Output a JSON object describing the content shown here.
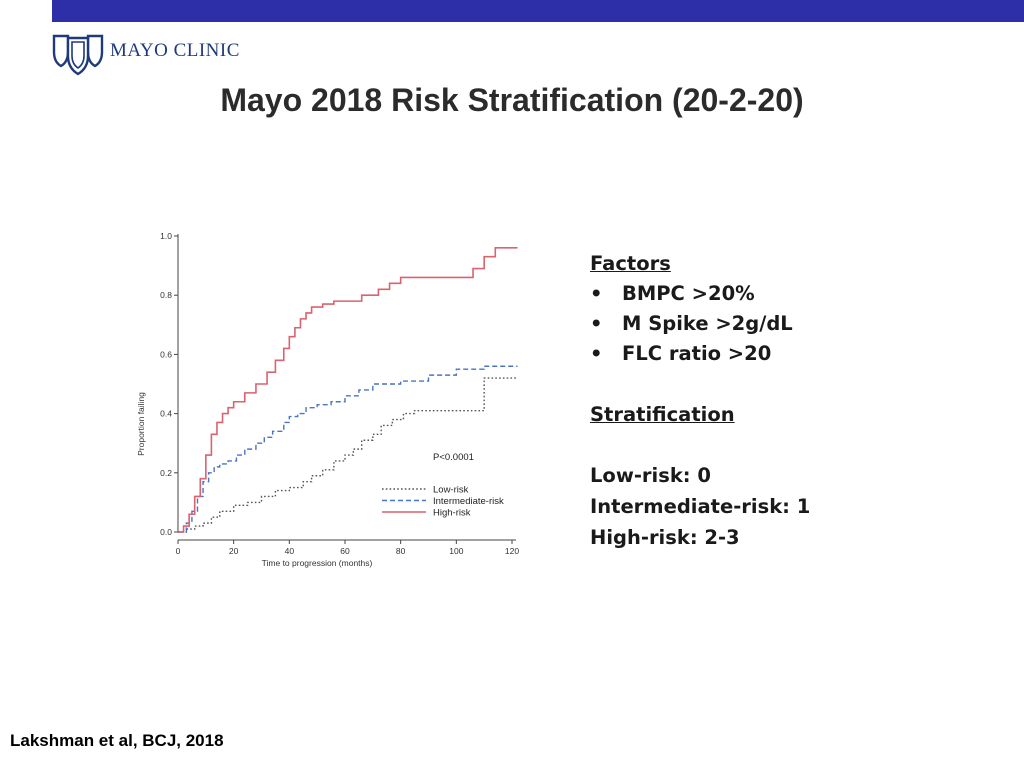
{
  "header": {
    "bar_color": "#2c2fa8",
    "logo_text": "MAYO CLINIC",
    "logo_icon": "mayo-shields-icon"
  },
  "slide": {
    "title": "Mayo 2018 Risk Stratification (20-2-20)"
  },
  "chart_data": {
    "type": "line",
    "step": true,
    "xlabel": "Time to progression (months)",
    "ylabel": "Proportion failing",
    "xlim": [
      0,
      120
    ],
    "ylim": [
      0,
      1
    ],
    "x_ticks": [
      0,
      20,
      40,
      60,
      80,
      100,
      120
    ],
    "y_ticks": [
      "0.0",
      "0.2",
      "0.4",
      "0.6",
      "0.8",
      "1.0"
    ],
    "grid": false,
    "annotation": "P<0.0001",
    "legend_position": "bottom-right",
    "series": [
      {
        "name": "Low-risk",
        "color": "#555555",
        "dash": "dotted",
        "x": [
          0,
          3,
          6,
          9,
          12,
          15,
          20,
          25,
          30,
          35,
          40,
          45,
          48,
          52,
          56,
          60,
          63,
          66,
          70,
          73,
          77,
          81,
          85,
          90,
          100,
          108,
          110,
          122
        ],
        "y": [
          0,
          0.01,
          0.02,
          0.03,
          0.05,
          0.07,
          0.09,
          0.1,
          0.12,
          0.14,
          0.15,
          0.17,
          0.19,
          0.21,
          0.24,
          0.26,
          0.28,
          0.31,
          0.33,
          0.36,
          0.38,
          0.4,
          0.41,
          0.41,
          0.41,
          0.41,
          0.52,
          0.52
        ]
      },
      {
        "name": "Intermediate-risk",
        "color": "#4a74c4",
        "dash": "dashed",
        "x": [
          0,
          3,
          5,
          7,
          9,
          11,
          13,
          15,
          18,
          21,
          24,
          28,
          31,
          34,
          38,
          40,
          43,
          46,
          50,
          55,
          60,
          65,
          70,
          80,
          90,
          100,
          110,
          122
        ],
        "y": [
          0,
          0.03,
          0.07,
          0.12,
          0.17,
          0.2,
          0.22,
          0.23,
          0.24,
          0.26,
          0.28,
          0.3,
          0.32,
          0.34,
          0.37,
          0.39,
          0.4,
          0.42,
          0.43,
          0.44,
          0.46,
          0.48,
          0.5,
          0.51,
          0.53,
          0.55,
          0.56,
          0.56
        ]
      },
      {
        "name": "High-risk",
        "color": "#d9636e",
        "dash": "solid",
        "x": [
          0,
          2,
          4,
          6,
          8,
          10,
          12,
          14,
          16,
          18,
          20,
          24,
          28,
          32,
          35,
          38,
          40,
          42,
          44,
          46,
          48,
          52,
          56,
          60,
          66,
          72,
          76,
          80,
          90,
          100,
          106,
          110,
          114,
          122
        ],
        "y": [
          0,
          0.02,
          0.06,
          0.12,
          0.18,
          0.26,
          0.33,
          0.37,
          0.4,
          0.42,
          0.44,
          0.47,
          0.5,
          0.54,
          0.58,
          0.62,
          0.66,
          0.69,
          0.72,
          0.74,
          0.76,
          0.77,
          0.78,
          0.78,
          0.8,
          0.82,
          0.84,
          0.86,
          0.86,
          0.86,
          0.89,
          0.93,
          0.96,
          0.96
        ]
      }
    ]
  },
  "panel": {
    "factors_heading": "Factors",
    "bullet": "•",
    "factors": [
      "BMPC >20%",
      "M Spike >2g/dL",
      "FLC ratio >20"
    ],
    "stratification_heading": "Stratification",
    "levels": [
      "Low-risk: 0",
      "Intermediate-risk: 1",
      "High-risk: 2-3"
    ]
  },
  "footer": {
    "citation": "Lakshman et al, BCJ, 2018"
  }
}
